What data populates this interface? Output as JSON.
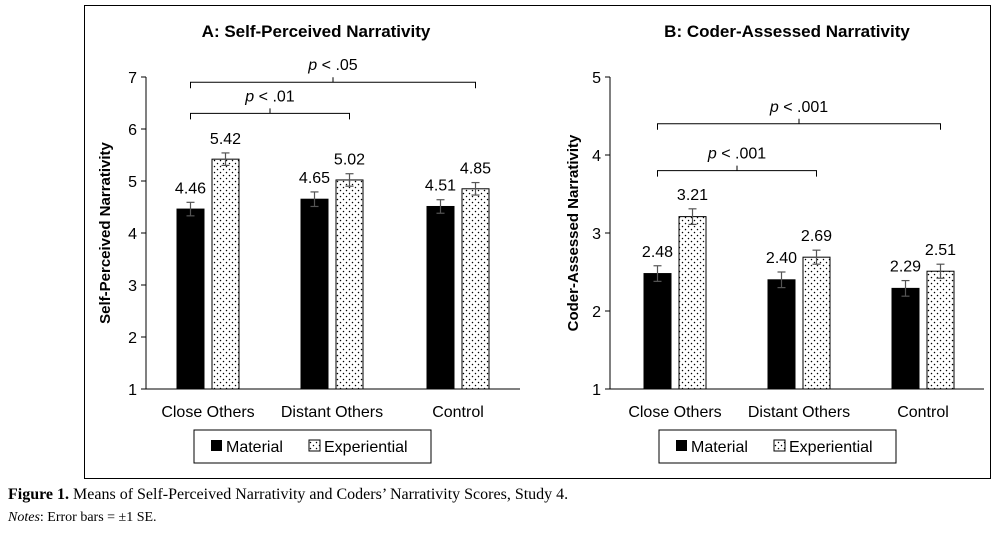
{
  "chart_data": [
    {
      "type": "bar",
      "title": "A: Self-Perceived Narrativity",
      "xlabel": "",
      "ylabel": "Self-Perceived Narrativity",
      "ylim": [
        1,
        7
      ],
      "yticks": [
        "1",
        "2",
        "3",
        "4",
        "5",
        "6",
        "7"
      ],
      "categories": [
        "Close Others",
        "Distant Others",
        "Control"
      ],
      "series": [
        {
          "name": "Material",
          "values": [
            4.46,
            4.65,
            4.51
          ],
          "value_labels": [
            "4.46",
            "4.65",
            "4.51"
          ],
          "errors": [
            0.13,
            0.14,
            0.13
          ],
          "fill": "#000000"
        },
        {
          "name": "Experiential",
          "values": [
            5.42,
            5.02,
            4.85
          ],
          "value_labels": [
            "5.42",
            "5.02",
            "4.85"
          ],
          "errors": [
            0.12,
            0.12,
            0.12
          ],
          "fill": "dotted"
        }
      ],
      "legend": "bottom",
      "brackets": [
        {
          "label": "p < .05",
          "from_category": 0,
          "to_category": 2,
          "level": 6.9
        },
        {
          "label": "p < .01",
          "from_category": 0,
          "to_category": 1,
          "level": 6.3
        }
      ]
    },
    {
      "type": "bar",
      "title": "B: Coder-Assessed Narrativity",
      "xlabel": "",
      "ylabel": "Coder-Assessed Narrativity",
      "ylim": [
        1,
        5
      ],
      "yticks": [
        "1",
        "2",
        "3",
        "4",
        "5"
      ],
      "categories": [
        "Close Others",
        "Distant Others",
        "Control"
      ],
      "series": [
        {
          "name": "Material",
          "values": [
            2.48,
            2.4,
            2.29
          ],
          "value_labels": [
            "2.48",
            "2.40",
            "2.29"
          ],
          "errors": [
            0.1,
            0.1,
            0.1
          ],
          "fill": "#000000"
        },
        {
          "name": "Experiential",
          "values": [
            3.21,
            2.69,
            2.51
          ],
          "value_labels": [
            "3.21",
            "2.69",
            "2.51"
          ],
          "errors": [
            0.1,
            0.09,
            0.09
          ],
          "fill": "dotted"
        }
      ],
      "legend": "bottom",
      "brackets": [
        {
          "label": "p < .001",
          "from_category": 0,
          "to_category": 2,
          "level": 4.4
        },
        {
          "label": "p < .001",
          "from_category": 0,
          "to_category": 1,
          "level": 3.8
        }
      ]
    }
  ],
  "caption": {
    "label": "Figure 1.",
    "text": "Means of Self-Perceived Narrativity and Coders’ Narrativity Scores, Study 4."
  },
  "notes": {
    "label": "Notes",
    "text": ": Error bars = ±1 SE."
  }
}
